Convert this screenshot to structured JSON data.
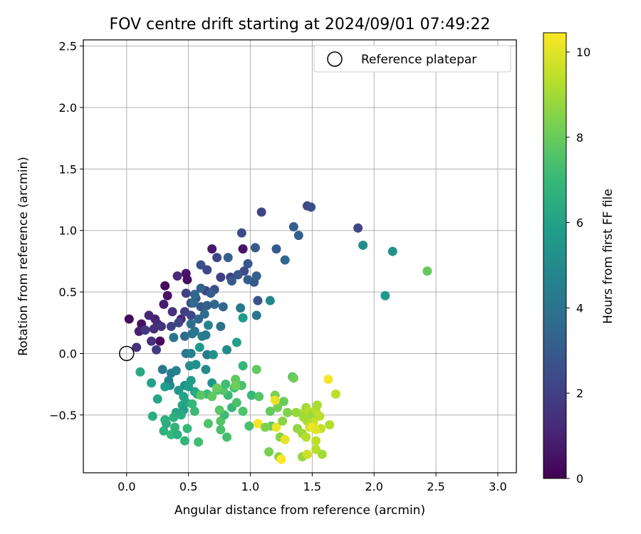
{
  "chart_data": {
    "type": "scatter",
    "title": "FOV centre drift starting at 2024/09/01 07:49:22",
    "xlabel": "Angular distance from reference (arcmin)",
    "ylabel": "Rotation from reference (arcmin)",
    "xlim": [
      -0.35,
      3.15
    ],
    "ylim": [
      -0.97,
      2.55
    ],
    "xticks": [
      0.0,
      0.5,
      1.0,
      1.5,
      2.0,
      2.5,
      3.0
    ],
    "xtick_labels": [
      "0.0",
      "0.5",
      "1.0",
      "1.5",
      "2.0",
      "2.5",
      "3.0"
    ],
    "yticks": [
      -0.5,
      0.0,
      0.5,
      1.0,
      1.5,
      2.0,
      2.5
    ],
    "ytick_labels": [
      "−0.5",
      "0.0",
      "0.5",
      "1.0",
      "1.5",
      "2.0",
      "2.5"
    ],
    "grid": true,
    "legend": {
      "position": "top-right",
      "entries": [
        "Reference platepar"
      ]
    },
    "reference_point": {
      "x": 0.0,
      "y": 0.0,
      "label": "Reference platepar"
    },
    "colorbar": {
      "label": "Hours from first FF file",
      "range": [
        0,
        10.45
      ],
      "ticks": [
        0,
        2,
        4,
        6,
        8,
        10
      ],
      "tick_labels": [
        "0",
        "2",
        "4",
        "6",
        "8",
        "10"
      ],
      "colormap": "viridis"
    },
    "series": [
      {
        "points": [
          {
            "x": 0.02,
            "y": 0.28,
            "h": 0.3
          },
          {
            "x": 0.12,
            "y": 0.24,
            "h": 0.5
          },
          {
            "x": 0.31,
            "y": 0.55,
            "h": 0.3
          },
          {
            "x": 0.33,
            "y": 0.47,
            "h": 0.5
          },
          {
            "x": 0.27,
            "y": 0.1,
            "h": 0.2
          },
          {
            "x": 0.3,
            "y": 0.4,
            "h": 0.8
          },
          {
            "x": 0.48,
            "y": 0.65,
            "h": 0.6
          },
          {
            "x": 0.49,
            "y": 0.6,
            "h": 0.4
          },
          {
            "x": 0.69,
            "y": 0.85,
            "h": 0.7
          },
          {
            "x": 0.94,
            "y": 0.85,
            "h": 0.6
          },
          {
            "x": 0.1,
            "y": 0.18,
            "h": 0.9
          },
          {
            "x": 0.23,
            "y": 0.28,
            "h": 1.0
          },
          {
            "x": 0.41,
            "y": 0.63,
            "h": 1.3
          },
          {
            "x": 0.25,
            "y": 0.24,
            "h": 1.2
          },
          {
            "x": 0.22,
            "y": 0.2,
            "h": 1.4
          },
          {
            "x": 0.18,
            "y": 0.31,
            "h": 1.1
          },
          {
            "x": 0.44,
            "y": 0.28,
            "h": 1.2
          },
          {
            "x": 0.37,
            "y": 0.34,
            "h": 1.5
          },
          {
            "x": 0.08,
            "y": 0.05,
            "h": 1.6
          },
          {
            "x": 0.2,
            "y": 0.1,
            "h": 1.5
          },
          {
            "x": 0.24,
            "y": 0.03,
            "h": 1.8
          },
          {
            "x": 0.15,
            "y": 0.19,
            "h": 1.7
          },
          {
            "x": 0.28,
            "y": 0.22,
            "h": 1.6
          },
          {
            "x": 0.36,
            "y": 0.22,
            "h": 2.0
          },
          {
            "x": 0.42,
            "y": 0.25,
            "h": 2.2
          },
          {
            "x": 0.47,
            "y": 0.34,
            "h": 2.0
          },
          {
            "x": 0.52,
            "y": 0.31,
            "h": 2.3
          },
          {
            "x": 0.48,
            "y": 0.49,
            "h": 2.1
          },
          {
            "x": 0.52,
            "y": 0.41,
            "h": 2.4
          },
          {
            "x": 0.64,
            "y": 0.51,
            "h": 2.0
          },
          {
            "x": 0.71,
            "y": 0.52,
            "h": 2.5
          },
          {
            "x": 0.73,
            "y": 0.78,
            "h": 2.2
          },
          {
            "x": 0.6,
            "y": 0.72,
            "h": 2.6
          },
          {
            "x": 0.65,
            "y": 0.68,
            "h": 2.3
          },
          {
            "x": 0.76,
            "y": 0.62,
            "h": 1.9
          },
          {
            "x": 0.84,
            "y": 0.62,
            "h": 2.1
          },
          {
            "x": 0.93,
            "y": 0.98,
            "h": 2.4
          },
          {
            "x": 1.09,
            "y": 1.15,
            "h": 2.2
          },
          {
            "x": 1.46,
            "y": 1.2,
            "h": 2.2
          },
          {
            "x": 1.49,
            "y": 1.19,
            "h": 2.6
          },
          {
            "x": 1.87,
            "y": 1.02,
            "h": 2.2
          },
          {
            "x": 1.35,
            "y": 1.03,
            "h": 3.1
          },
          {
            "x": 1.39,
            "y": 0.96,
            "h": 3.2
          },
          {
            "x": 1.21,
            "y": 0.85,
            "h": 3.0
          },
          {
            "x": 1.04,
            "y": 0.86,
            "h": 2.9
          },
          {
            "x": 1.28,
            "y": 0.76,
            "h": 3.4
          },
          {
            "x": 1.06,
            "y": 0.43,
            "h": 2.7
          },
          {
            "x": 0.98,
            "y": 0.73,
            "h": 2.9
          },
          {
            "x": 0.95,
            "y": 0.67,
            "h": 2.6
          },
          {
            "x": 0.9,
            "y": 0.64,
            "h": 2.8
          },
          {
            "x": 1.03,
            "y": 0.58,
            "h": 3.0
          },
          {
            "x": 1.05,
            "y": 0.63,
            "h": 3.3
          },
          {
            "x": 0.98,
            "y": 0.6,
            "h": 3.1
          },
          {
            "x": 0.85,
            "y": 0.59,
            "h": 3.0
          },
          {
            "x": 0.82,
            "y": 0.78,
            "h": 3.2
          },
          {
            "x": 0.56,
            "y": 0.45,
            "h": 2.8
          },
          {
            "x": 0.6,
            "y": 0.38,
            "h": 2.9
          },
          {
            "x": 0.6,
            "y": 0.53,
            "h": 3.3
          },
          {
            "x": 0.68,
            "y": 0.49,
            "h": 3.0
          },
          {
            "x": 0.78,
            "y": 0.38,
            "h": 3.4
          },
          {
            "x": 0.71,
            "y": 0.4,
            "h": 3.5
          },
          {
            "x": 0.65,
            "y": 0.39,
            "h": 3.2
          },
          {
            "x": 0.55,
            "y": 0.48,
            "h": 3.5
          },
          {
            "x": 0.54,
            "y": 0.41,
            "h": 3.6
          },
          {
            "x": 0.63,
            "y": 0.32,
            "h": 3.7
          },
          {
            "x": 0.58,
            "y": 0.28,
            "h": 3.4
          },
          {
            "x": 0.52,
            "y": 0.24,
            "h": 3.8
          },
          {
            "x": 0.55,
            "y": 0.18,
            "h": 3.9
          },
          {
            "x": 0.47,
            "y": 0.14,
            "h": 3.6
          },
          {
            "x": 0.38,
            "y": 0.13,
            "h": 4.0
          },
          {
            "x": 0.29,
            "y": -0.13,
            "h": 4.2
          },
          {
            "x": 0.36,
            "y": -0.16,
            "h": 4.4
          },
          {
            "x": 0.35,
            "y": -0.26,
            "h": 5.0
          },
          {
            "x": 0.34,
            "y": -0.22,
            "h": 4.6
          },
          {
            "x": 0.64,
            "y": 0.15,
            "h": 4.3
          },
          {
            "x": 0.61,
            "y": 0.14,
            "h": 4.4
          },
          {
            "x": 0.53,
            "y": 0.16,
            "h": 4.1
          },
          {
            "x": 0.66,
            "y": 0.23,
            "h": 4.7
          },
          {
            "x": 0.76,
            "y": 0.22,
            "h": 4.0
          },
          {
            "x": 0.92,
            "y": 0.37,
            "h": 4.2
          },
          {
            "x": 1.05,
            "y": 0.31,
            "h": 4.1
          },
          {
            "x": 1.16,
            "y": 0.43,
            "h": 4.9
          },
          {
            "x": 2.09,
            "y": 0.47,
            "h": 5.6
          },
          {
            "x": 1.91,
            "y": 0.88,
            "h": 5.1
          },
          {
            "x": 2.15,
            "y": 0.83,
            "h": 5.3
          },
          {
            "x": 0.48,
            "y": 0.0,
            "h": 4.1
          },
          {
            "x": 0.52,
            "y": 0.0,
            "h": 4.5
          },
          {
            "x": 0.65,
            "y": -0.01,
            "h": 4.3
          },
          {
            "x": 0.81,
            "y": 0.03,
            "h": 5.0
          },
          {
            "x": 0.59,
            "y": 0.05,
            "h": 5.6
          },
          {
            "x": 0.7,
            "y": -0.01,
            "h": 5.3
          },
          {
            "x": 0.89,
            "y": 0.09,
            "h": 5.9
          },
          {
            "x": 0.94,
            "y": 0.29,
            "h": 5.7
          },
          {
            "x": 0.4,
            "y": -0.14,
            "h": 4.6
          },
          {
            "x": 0.51,
            "y": -0.1,
            "h": 5.1
          },
          {
            "x": 0.56,
            "y": -0.09,
            "h": 5.3
          },
          {
            "x": 0.64,
            "y": -0.13,
            "h": 5.0
          },
          {
            "x": 0.69,
            "y": -0.24,
            "h": 5.4
          },
          {
            "x": 0.47,
            "y": -0.26,
            "h": 5.3
          },
          {
            "x": 0.52,
            "y": -0.22,
            "h": 5.7
          },
          {
            "x": 0.42,
            "y": -0.3,
            "h": 5.6
          },
          {
            "x": 0.46,
            "y": -0.35,
            "h": 6.0
          },
          {
            "x": 0.55,
            "y": -0.31,
            "h": 6.2
          },
          {
            "x": 0.5,
            "y": -0.27,
            "h": 5.8
          },
          {
            "x": 0.57,
            "y": -0.33,
            "h": 6.4
          },
          {
            "x": 0.45,
            "y": -0.42,
            "h": 6.3
          },
          {
            "x": 0.48,
            "y": -0.4,
            "h": 6.1
          },
          {
            "x": 0.46,
            "y": -0.46,
            "h": 5.9
          },
          {
            "x": 0.44,
            "y": -0.5,
            "h": 6.5
          },
          {
            "x": 0.4,
            "y": -0.48,
            "h": 6.2
          },
          {
            "x": 0.38,
            "y": -0.52,
            "h": 6.6
          },
          {
            "x": 0.39,
            "y": -0.6,
            "h": 6.8
          },
          {
            "x": 0.32,
            "y": -0.57,
            "h": 6.4
          },
          {
            "x": 0.3,
            "y": -0.63,
            "h": 6.7
          },
          {
            "x": 0.36,
            "y": -0.66,
            "h": 6.9
          },
          {
            "x": 0.41,
            "y": -0.66,
            "h": 6.6
          },
          {
            "x": 0.49,
            "y": -0.61,
            "h": 7.0
          },
          {
            "x": 0.47,
            "y": -0.71,
            "h": 6.8
          },
          {
            "x": 0.58,
            "y": -0.72,
            "h": 7.2
          },
          {
            "x": 0.21,
            "y": -0.51,
            "h": 6.5
          },
          {
            "x": 0.25,
            "y": -0.37,
            "h": 6.2
          },
          {
            "x": 0.2,
            "y": -0.24,
            "h": 6.0
          },
          {
            "x": 0.11,
            "y": -0.15,
            "h": 6.3
          },
          {
            "x": 0.31,
            "y": -0.27,
            "h": 5.8
          },
          {
            "x": 0.31,
            "y": -0.54,
            "h": 6.6
          },
          {
            "x": 0.55,
            "y": -0.47,
            "h": 7.1
          },
          {
            "x": 0.53,
            "y": -0.41,
            "h": 6.9
          },
          {
            "x": 0.65,
            "y": -0.33,
            "h": 7.0
          },
          {
            "x": 0.66,
            "y": -0.57,
            "h": 7.5
          },
          {
            "x": 0.76,
            "y": -0.62,
            "h": 7.4
          },
          {
            "x": 0.81,
            "y": -0.68,
            "h": 7.3
          },
          {
            "x": 0.76,
            "y": -0.55,
            "h": 7.6
          },
          {
            "x": 0.79,
            "y": -0.5,
            "h": 7.2
          },
          {
            "x": 0.85,
            "y": -0.44,
            "h": 7.0
          },
          {
            "x": 0.89,
            "y": -0.4,
            "h": 7.4
          },
          {
            "x": 0.82,
            "y": -0.34,
            "h": 7.1
          },
          {
            "x": 0.78,
            "y": -0.3,
            "h": 7.6
          },
          {
            "x": 0.87,
            "y": -0.28,
            "h": 7.3
          },
          {
            "x": 0.73,
            "y": -0.3,
            "h": 7.5
          },
          {
            "x": 0.8,
            "y": -0.25,
            "h": 7.2
          },
          {
            "x": 0.88,
            "y": -0.21,
            "h": 7.8
          },
          {
            "x": 0.93,
            "y": -0.26,
            "h": 7.4
          },
          {
            "x": 0.94,
            "y": -0.1,
            "h": 6.9
          },
          {
            "x": 0.94,
            "y": -0.47,
            "h": 7.5
          },
          {
            "x": 1.01,
            "y": -0.34,
            "h": 7.0
          },
          {
            "x": 1.07,
            "y": -0.35,
            "h": 7.6
          },
          {
            "x": 1.05,
            "y": -0.13,
            "h": 7.9
          },
          {
            "x": 0.6,
            "y": -0.34,
            "h": 7.7
          },
          {
            "x": 0.69,
            "y": -0.35,
            "h": 7.8
          },
          {
            "x": 0.75,
            "y": -0.46,
            "h": 7.7
          },
          {
            "x": 0.73,
            "y": -0.28,
            "h": 8.0
          },
          {
            "x": 0.88,
            "y": -0.26,
            "h": 8.1
          },
          {
            "x": 1.16,
            "y": -0.47,
            "h": 7.9
          },
          {
            "x": 1.22,
            "y": -0.44,
            "h": 8.2
          },
          {
            "x": 1.27,
            "y": -0.39,
            "h": 8.0
          },
          {
            "x": 1.34,
            "y": -0.19,
            "h": 7.6
          },
          {
            "x": 1.35,
            "y": -0.2,
            "h": 8.1
          },
          {
            "x": 1.2,
            "y": -0.34,
            "h": 8.3
          },
          {
            "x": 1.3,
            "y": -0.48,
            "h": 8.4
          },
          {
            "x": 1.17,
            "y": -0.59,
            "h": 8.0
          },
          {
            "x": 1.15,
            "y": -0.8,
            "h": 8.3
          },
          {
            "x": 1.23,
            "y": -0.84,
            "h": 8.6
          },
          {
            "x": 1.24,
            "y": -0.68,
            "h": 8.5
          },
          {
            "x": 2.43,
            "y": 0.67,
            "h": 7.9
          },
          {
            "x": 1.38,
            "y": -0.61,
            "h": 8.7
          },
          {
            "x": 1.42,
            "y": -0.65,
            "h": 8.9
          },
          {
            "x": 1.42,
            "y": -0.49,
            "h": 9.1
          },
          {
            "x": 1.37,
            "y": -0.48,
            "h": 8.8
          },
          {
            "x": 1.45,
            "y": -0.44,
            "h": 9.0
          },
          {
            "x": 1.47,
            "y": -0.47,
            "h": 9.2
          },
          {
            "x": 1.5,
            "y": -0.5,
            "h": 8.9
          },
          {
            "x": 1.53,
            "y": -0.46,
            "h": 9.3
          },
          {
            "x": 1.54,
            "y": -0.42,
            "h": 9.1
          },
          {
            "x": 1.56,
            "y": -0.51,
            "h": 9.4
          },
          {
            "x": 1.51,
            "y": -0.56,
            "h": 9.5
          },
          {
            "x": 1.46,
            "y": -0.55,
            "h": 9.2
          },
          {
            "x": 1.43,
            "y": -0.52,
            "h": 9.0
          },
          {
            "x": 1.48,
            "y": -0.6,
            "h": 9.6
          },
          {
            "x": 1.53,
            "y": -0.71,
            "h": 9.4
          },
          {
            "x": 1.45,
            "y": -0.68,
            "h": 9.3
          },
          {
            "x": 1.42,
            "y": -0.84,
            "h": 8.8
          },
          {
            "x": 1.46,
            "y": -0.82,
            "h": 9.7
          },
          {
            "x": 1.53,
            "y": -0.78,
            "h": 9.3
          },
          {
            "x": 1.58,
            "y": -0.82,
            "h": 9.0
          },
          {
            "x": 1.57,
            "y": -0.61,
            "h": 9.5
          },
          {
            "x": 1.64,
            "y": -0.58,
            "h": 9.2
          },
          {
            "x": 1.69,
            "y": -0.33,
            "h": 9.4
          },
          {
            "x": 1.63,
            "y": -0.21,
            "h": 10.3
          },
          {
            "x": 1.5,
            "y": -0.6,
            "h": 10.2
          },
          {
            "x": 1.53,
            "y": -0.62,
            "h": 10.0
          },
          {
            "x": 1.28,
            "y": -0.7,
            "h": 10.1
          },
          {
            "x": 1.25,
            "y": -0.86,
            "h": 10.4
          },
          {
            "x": 1.21,
            "y": -0.6,
            "h": 10.2
          },
          {
            "x": 1.2,
            "y": -0.38,
            "h": 10.1
          },
          {
            "x": 1.06,
            "y": -0.57,
            "h": 10.3
          },
          {
            "x": 1.26,
            "y": -0.55,
            "h": 8.6
          },
          {
            "x": 1.12,
            "y": -0.6,
            "h": 8.4
          },
          {
            "x": 0.99,
            "y": -0.59,
            "h": 7.4
          }
        ]
      }
    ]
  }
}
